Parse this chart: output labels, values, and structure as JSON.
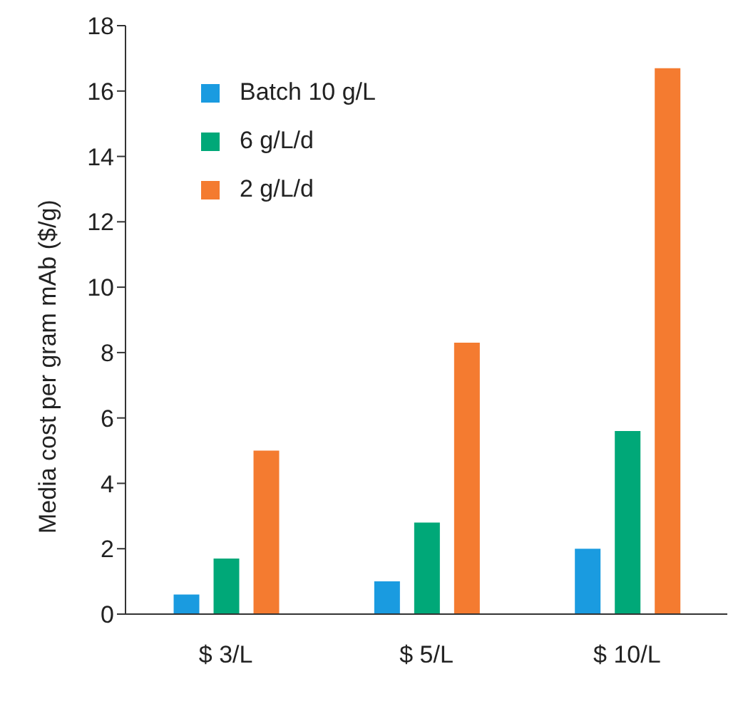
{
  "chart_data": {
    "type": "bar",
    "ylabel": "Media cost per gram mAb ($/g)",
    "categories": [
      "$ 3/L",
      "$ 5/L",
      "$ 10/L"
    ],
    "series": [
      {
        "name": "Batch 10 g/L",
        "color": "#1a9be0",
        "values": [
          0.6,
          1.0,
          2.0
        ]
      },
      {
        "name": "6 g/L/d",
        "color": "#00a878",
        "values": [
          1.7,
          2.8,
          5.6
        ]
      },
      {
        "name": "2 g/L/d",
        "color": "#f47b30",
        "values": [
          5.0,
          8.3,
          16.7
        ]
      }
    ],
    "ylim": [
      0,
      18
    ],
    "yticks": [
      0,
      2,
      4,
      6,
      8,
      10,
      12,
      14,
      16,
      18
    ],
    "grid": false,
    "legend": "top left"
  }
}
